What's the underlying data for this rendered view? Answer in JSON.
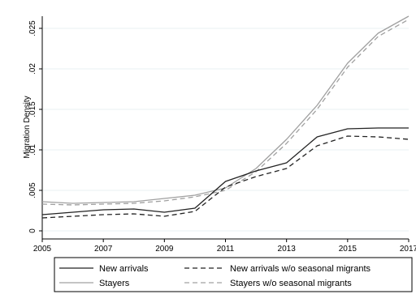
{
  "chart_data": {
    "type": "line",
    "title": "",
    "xlabel": "",
    "ylabel": "Migration Density",
    "xlim": [
      2005,
      2017
    ],
    "ylim": [
      0,
      0.0265
    ],
    "x_ticks": [
      "2005",
      "2007",
      "2009",
      "2011",
      "2013",
      "2015",
      "2017"
    ],
    "y_ticks": [
      "0",
      ".005",
      ".01",
      ".015",
      ".02",
      ".025"
    ],
    "grid": true,
    "legend_position": "bottom",
    "x": [
      2005,
      2006,
      2007,
      2008,
      2009,
      2010,
      2011,
      2012,
      2013,
      2014,
      2015,
      2016,
      2017
    ],
    "series": [
      {
        "name": "New arrivals",
        "color": "#222222",
        "style": "solid",
        "values": [
          0.002,
          0.0023,
          0.0026,
          0.0027,
          0.0023,
          0.0028,
          0.0061,
          0.0074,
          0.0084,
          0.0116,
          0.0126,
          0.0127,
          0.0127
        ]
      },
      {
        "name": "New arrivals w/o seasonal migrants",
        "color": "#222222",
        "style": "dashed",
        "values": [
          0.0016,
          0.0018,
          0.002,
          0.0021,
          0.0018,
          0.0024,
          0.0054,
          0.0067,
          0.0077,
          0.0105,
          0.0117,
          0.0116,
          0.0113
        ]
      },
      {
        "name": "Stayers",
        "color": "#a0a0a0",
        "style": "solid",
        "values": [
          0.0036,
          0.0034,
          0.0035,
          0.0036,
          0.004,
          0.0044,
          0.0053,
          0.0077,
          0.0113,
          0.0155,
          0.0207,
          0.0244,
          0.0265
        ]
      },
      {
        "name": "Stayers w/o seasonal migrants",
        "color": "#a0a0a0",
        "style": "dashed",
        "values": [
          0.0033,
          0.0032,
          0.0033,
          0.0034,
          0.0037,
          0.0042,
          0.005,
          0.0073,
          0.0108,
          0.015,
          0.0202,
          0.024,
          0.0261
        ]
      }
    ]
  }
}
